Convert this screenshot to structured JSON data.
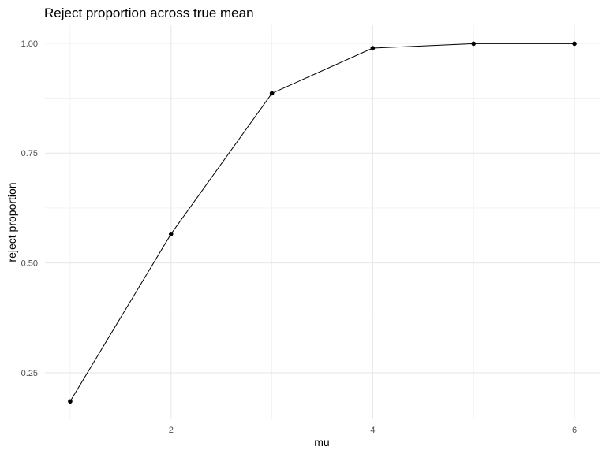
{
  "chart_data": {
    "type": "line",
    "title": "Reject proportion across true mean",
    "xlabel": "mu",
    "ylabel": "reject proportion",
    "x": [
      1,
      2,
      3,
      4,
      5,
      6
    ],
    "series": [
      {
        "values": [
          0.185,
          0.566,
          0.886,
          0.989,
          0.999,
          0.999
        ]
      }
    ],
    "xlim": [
      0.75,
      6.25
    ],
    "ylim": [
      0.146,
      1.041
    ],
    "x_ticks": [
      2,
      4,
      6
    ],
    "x_tick_labels": [
      "2",
      "4",
      "6"
    ],
    "y_ticks": [
      0.25,
      0.5,
      0.75,
      1.0
    ],
    "y_tick_labels": [
      "0.25",
      "0.50",
      "0.75",
      "1.00"
    ],
    "grid": true,
    "legend": "none",
    "colors": {
      "line": "#000000",
      "point": "#000000",
      "grid_major": "#e6e6e6",
      "grid_minor": "#f0f0f0",
      "tick_text": "#4d4d4d"
    }
  }
}
